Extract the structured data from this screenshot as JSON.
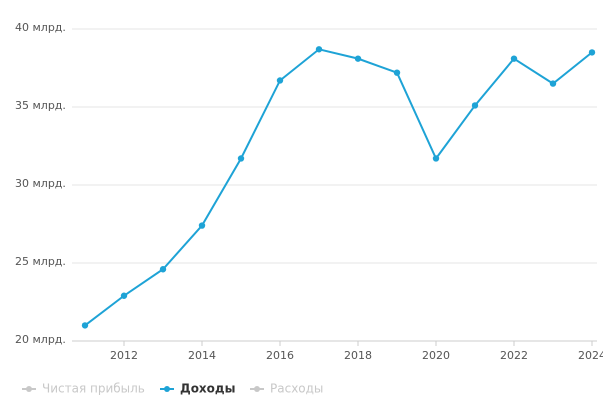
{
  "chart_data": {
    "type": "line",
    "x": [
      2011,
      2012,
      2013,
      2014,
      2015,
      2016,
      2017,
      2018,
      2019,
      2020,
      2021,
      2022,
      2023,
      2024
    ],
    "series": [
      {
        "name": "Доходы",
        "color": "#1ea3d6",
        "values": [
          21.0,
          22.9,
          24.6,
          27.4,
          31.7,
          36.7,
          38.7,
          38.1,
          37.2,
          31.7,
          35.1,
          38.1,
          36.5,
          38.5
        ]
      }
    ],
    "legend": [
      {
        "name": "Чистая прибыль",
        "color": "#c8c8c8",
        "active": false
      },
      {
        "name": "Доходы",
        "color": "#1ea3d6",
        "active": true
      },
      {
        "name": "Расходы",
        "color": "#c8c8c8",
        "active": false
      }
    ],
    "xlim": [
      2011,
      2024
    ],
    "xticks": [
      2012,
      2014,
      2016,
      2018,
      2020,
      2022,
      2024
    ],
    "ylim": [
      20,
      40
    ],
    "yticks": [
      {
        "value": 20,
        "label": "20 млрд."
      },
      {
        "value": 25,
        "label": "25 млрд."
      },
      {
        "value": 30,
        "label": "30 млрд."
      },
      {
        "value": 35,
        "label": "35 млрд."
      },
      {
        "value": 40,
        "label": "40 млрд."
      }
    ],
    "grid": true
  }
}
